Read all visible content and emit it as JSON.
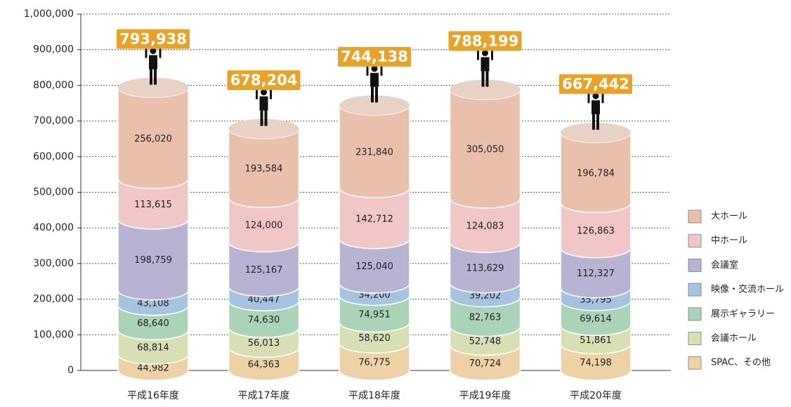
{
  "chart_data": {
    "type": "stacked_cylinder",
    "categories": [
      "平成16年度",
      "平成17年度",
      "平成18年度",
      "平成19年度",
      "平成20年度"
    ],
    "series": [
      {
        "name": "SPAC、その他",
        "color": "#eed2a6",
        "values": [
          44982,
          64363,
          76775,
          70724,
          74198
        ],
        "value_labels": [
          "44,982",
          "64,363",
          "76,775",
          "70,724",
          "74,198"
        ]
      },
      {
        "name": "会議ホール",
        "color": "#d8e0b3",
        "values": [
          68814,
          56013,
          58620,
          52748,
          51861
        ],
        "value_labels": [
          "68,814",
          "56,013",
          "58,620",
          "52,748",
          "51,861"
        ]
      },
      {
        "name": "展示ギャラリー",
        "color": "#a9d4b7",
        "values": [
          68640,
          74630,
          74951,
          82763,
          69614
        ],
        "value_labels": [
          "68,640",
          "74,630",
          "74,951",
          "82,763",
          "69,614"
        ]
      },
      {
        "name": "映像・交流ホール",
        "color": "#a6c3e2",
        "values": [
          43108,
          40447,
          34200,
          39202,
          35795
        ],
        "value_labels": [
          "43,108",
          "40,447",
          "34,200",
          "39,202",
          "35,795"
        ]
      },
      {
        "name": "会議室",
        "color": "#b8b3d3",
        "values": [
          198759,
          125167,
          125040,
          113629,
          112327
        ],
        "value_labels": [
          "198,759",
          "125,167",
          "125,040",
          "113,629",
          "112,327"
        ]
      },
      {
        "name": "中ホール",
        "color": "#f0c6c6",
        "values": [
          113615,
          124000,
          142712,
          124083,
          126863
        ],
        "value_labels": [
          "113,615",
          "124,000",
          "142,712",
          "124,083",
          "126,863"
        ]
      },
      {
        "name": "大ホール",
        "color": "#e9c0aa",
        "values": [
          256020,
          193584,
          231840,
          305050,
          196784
        ],
        "value_labels": [
          "256,020",
          "193,584",
          "231,840",
          "305,050",
          "196,784"
        ]
      }
    ],
    "totals": {
      "values": [
        793938,
        678204,
        744138,
        788199,
        667442
      ],
      "value_labels": [
        "793,938",
        "678,204",
        "744,138",
        "788,199",
        "667,442"
      ],
      "color": "#e9a228"
    },
    "ylim": [
      0,
      1000000
    ],
    "yticks": [
      0,
      {
        "value": 100000,
        "label": "100,000"
      },
      {
        "value": 200000,
        "label": "200,000"
      },
      {
        "value": 300000,
        "label": "300,000"
      },
      {
        "value": 400000,
        "label": "400,000"
      },
      {
        "value": 500000,
        "label": "500,000"
      },
      {
        "value": 600000,
        "label": "600,000"
      },
      {
        "value": 700000,
        "label": "700,000"
      },
      {
        "value": 800000,
        "label": "800,000"
      },
      {
        "value": 900000,
        "label": "900,000"
      },
      {
        "value": 1000000,
        "label": "1,000,000"
      }
    ],
    "grid": true,
    "legend": "right"
  }
}
